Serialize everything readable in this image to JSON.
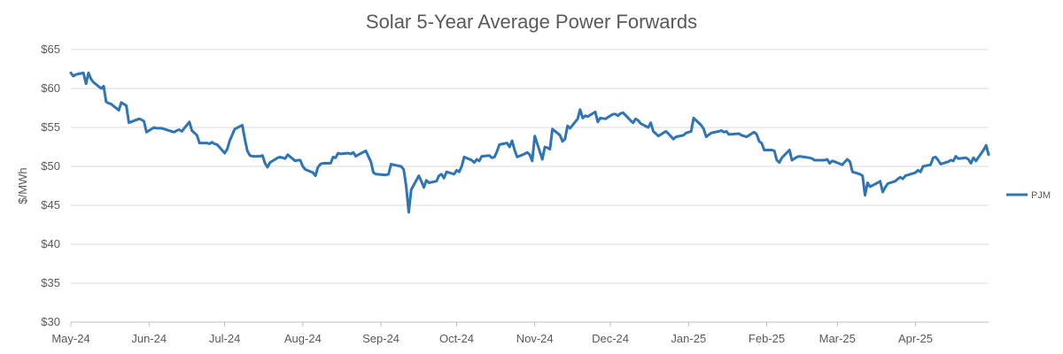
{
  "chart_data": {
    "type": "line",
    "title": "Solar 5-Year Average Power Forwards",
    "xlabel": "",
    "ylabel": "$/MWh",
    "ylim": [
      30,
      65
    ],
    "y_ticks": [
      30,
      35,
      40,
      45,
      50,
      55,
      60,
      65
    ],
    "y_tick_labels": [
      "$30",
      "$35",
      "$40",
      "$45",
      "$50",
      "$55",
      "$60",
      "$65"
    ],
    "x_range": [
      "2024-05-01",
      "2025-04-30"
    ],
    "x_ticks": [
      "2024-05-01",
      "2024-06-01",
      "2024-07-01",
      "2024-08-01",
      "2024-09-01",
      "2024-10-01",
      "2024-11-01",
      "2024-12-01",
      "2025-01-01",
      "2025-02-01",
      "2025-03-01",
      "2025-04-01"
    ],
    "x_tick_labels": [
      "May-24",
      "Jun-24",
      "Jul-24",
      "Aug-24",
      "Sep-24",
      "Oct-24",
      "Nov-24",
      "Dec-24",
      "Jan-25",
      "Feb-25",
      "Mar-25",
      "Apr-25"
    ],
    "grid": true,
    "legend_position": "right",
    "series": [
      {
        "name": "PJM",
        "color": "#2f75b5",
        "x": [
          "2024-05-01",
          "2024-05-02",
          "2024-05-03",
          "2024-05-06",
          "2024-05-07",
          "2024-05-08",
          "2024-05-09",
          "2024-05-10",
          "2024-05-13",
          "2024-05-14",
          "2024-05-15",
          "2024-05-16",
          "2024-05-17",
          "2024-05-20",
          "2024-05-21",
          "2024-05-22",
          "2024-05-23",
          "2024-05-24",
          "2024-05-28",
          "2024-05-29",
          "2024-05-30",
          "2024-05-31",
          "2024-06-03",
          "2024-06-04",
          "2024-06-05",
          "2024-06-06",
          "2024-06-07",
          "2024-06-10",
          "2024-06-11",
          "2024-06-12",
          "2024-06-13",
          "2024-06-14",
          "2024-06-17",
          "2024-06-18",
          "2024-06-20",
          "2024-06-21",
          "2024-06-24",
          "2024-06-25",
          "2024-06-26",
          "2024-06-27",
          "2024-06-28",
          "2024-07-01",
          "2024-07-02",
          "2024-07-03",
          "2024-07-05",
          "2024-07-08",
          "2024-07-09",
          "2024-07-10",
          "2024-07-11",
          "2024-07-12",
          "2024-07-15",
          "2024-07-16",
          "2024-07-17",
          "2024-07-18",
          "2024-07-19",
          "2024-07-22",
          "2024-07-23",
          "2024-07-24",
          "2024-07-25",
          "2024-07-26",
          "2024-07-29",
          "2024-07-30",
          "2024-07-31",
          "2024-08-01",
          "2024-08-02",
          "2024-08-05",
          "2024-08-06",
          "2024-08-07",
          "2024-08-08",
          "2024-08-09",
          "2024-08-12",
          "2024-08-13",
          "2024-08-14",
          "2024-08-15",
          "2024-08-16",
          "2024-08-19",
          "2024-08-20",
          "2024-08-21",
          "2024-08-22",
          "2024-08-23",
          "2024-08-26",
          "2024-08-27",
          "2024-08-28",
          "2024-08-29",
          "2024-08-30",
          "2024-09-03",
          "2024-09-04",
          "2024-09-05",
          "2024-09-06",
          "2024-09-09",
          "2024-09-10",
          "2024-09-11",
          "2024-09-12",
          "2024-09-13",
          "2024-09-16",
          "2024-09-17",
          "2024-09-18",
          "2024-09-19",
          "2024-09-20",
          "2024-09-23",
          "2024-09-24",
          "2024-09-25",
          "2024-09-26",
          "2024-09-27",
          "2024-09-30",
          "2024-10-01",
          "2024-10-02",
          "2024-10-03",
          "2024-10-04",
          "2024-10-07",
          "2024-10-08",
          "2024-10-09",
          "2024-10-10",
          "2024-10-11",
          "2024-10-14",
          "2024-10-15",
          "2024-10-16",
          "2024-10-17",
          "2024-10-18",
          "2024-10-21",
          "2024-10-22",
          "2024-10-23",
          "2024-10-24",
          "2024-10-25",
          "2024-10-28",
          "2024-10-29",
          "2024-10-30",
          "2024-10-31",
          "2024-11-01",
          "2024-11-04",
          "2024-11-05",
          "2024-11-06",
          "2024-11-07",
          "2024-11-08",
          "2024-11-11",
          "2024-11-12",
          "2024-11-13",
          "2024-11-14",
          "2024-11-15",
          "2024-11-18",
          "2024-11-19",
          "2024-11-20",
          "2024-11-21",
          "2024-11-22",
          "2024-11-25",
          "2024-11-26",
          "2024-11-27",
          "2024-11-29",
          "2024-12-02",
          "2024-12-03",
          "2024-12-04",
          "2024-12-05",
          "2024-12-06",
          "2024-12-09",
          "2024-12-10",
          "2024-12-11",
          "2024-12-12",
          "2024-12-13",
          "2024-12-16",
          "2024-12-17",
          "2024-12-18",
          "2024-12-19",
          "2024-12-20",
          "2024-12-23",
          "2024-12-24",
          "2024-12-26",
          "2024-12-27",
          "2024-12-30",
          "2024-12-31",
          "2025-01-02",
          "2025-01-03",
          "2025-01-06",
          "2025-01-07",
          "2025-01-08",
          "2025-01-10",
          "2025-01-13",
          "2025-01-14",
          "2025-01-15",
          "2025-01-16",
          "2025-01-17",
          "2025-01-21",
          "2025-01-22",
          "2025-01-23",
          "2025-01-24",
          "2025-01-27",
          "2025-01-28",
          "2025-01-29",
          "2025-01-30",
          "2025-01-31",
          "2025-02-03",
          "2025-02-04",
          "2025-02-05",
          "2025-02-06",
          "2025-02-07",
          "2025-02-10",
          "2025-02-11",
          "2025-02-12",
          "2025-02-13",
          "2025-02-14",
          "2025-02-18",
          "2025-02-19",
          "2025-02-20",
          "2025-02-21",
          "2025-02-24",
          "2025-02-25",
          "2025-02-26",
          "2025-02-27",
          "2025-02-28",
          "2025-03-03",
          "2025-03-04",
          "2025-03-05",
          "2025-03-06",
          "2025-03-07",
          "2025-03-10",
          "2025-03-11",
          "2025-03-12",
          "2025-03-13",
          "2025-03-14",
          "2025-03-17",
          "2025-03-18",
          "2025-03-19",
          "2025-03-20",
          "2025-03-21",
          "2025-03-24",
          "2025-03-25",
          "2025-03-26",
          "2025-03-27",
          "2025-03-28",
          "2025-03-31",
          "2025-04-01",
          "2025-04-02",
          "2025-04-03",
          "2025-04-04",
          "2025-04-07",
          "2025-04-08",
          "2025-04-09",
          "2025-04-10",
          "2025-04-11",
          "2025-04-14",
          "2025-04-15",
          "2025-04-16",
          "2025-04-17",
          "2025-04-18",
          "2025-04-21",
          "2025-04-22",
          "2025-04-23",
          "2025-04-24",
          "2025-04-25",
          "2025-04-28",
          "2025-04-29",
          "2025-04-30"
        ],
        "values": [
          62.0,
          61.6,
          61.8,
          62.0,
          60.6,
          62.0,
          61.2,
          60.8,
          60.0,
          60.3,
          58.3,
          58.1,
          58.0,
          57.2,
          58.2,
          58.0,
          57.8,
          55.6,
          56.1,
          56.0,
          55.8,
          54.4,
          55.0,
          54.9,
          54.9,
          54.9,
          54.8,
          54.5,
          54.4,
          54.6,
          54.7,
          54.5,
          55.7,
          54.6,
          54.0,
          53.0,
          53.0,
          52.9,
          53.1,
          52.9,
          52.8,
          51.7,
          52.2,
          53.3,
          54.8,
          55.3,
          53.5,
          52.0,
          51.4,
          51.3,
          51.3,
          51.4,
          50.4,
          49.9,
          50.5,
          51.1,
          51.2,
          51.1,
          51.0,
          51.5,
          50.7,
          50.8,
          50.8,
          50.0,
          49.6,
          49.2,
          48.8,
          49.9,
          50.3,
          50.4,
          50.4,
          51.2,
          51.1,
          51.7,
          51.6,
          51.7,
          51.6,
          51.8,
          51.3,
          51.5,
          52.0,
          51.3,
          50.6,
          49.2,
          49.0,
          48.9,
          49.0,
          50.3,
          50.2,
          50.0,
          49.6,
          47.5,
          44.1,
          47.0,
          48.8,
          48.1,
          47.3,
          48.2,
          47.9,
          48.1,
          48.8,
          49.0,
          48.5,
          49.3,
          49.0,
          49.5,
          49.3,
          50.0,
          51.2,
          50.8,
          50.5,
          50.9,
          50.7,
          51.3,
          51.4,
          51.1,
          51.2,
          51.9,
          52.8,
          53.0,
          52.5,
          53.3,
          52.1,
          51.2,
          51.6,
          51.8,
          51.5,
          50.7,
          53.9,
          50.9,
          52.5,
          52.4,
          52.2,
          54.8,
          54.0,
          53.2,
          53.5,
          55.2,
          54.9,
          56.1,
          57.3,
          56.2,
          56.5,
          56.4,
          57.0,
          55.7,
          56.2,
          56.1,
          56.7,
          56.7,
          56.5,
          56.8,
          56.9,
          55.9,
          55.6,
          56.1,
          55.9,
          55.5,
          55.0,
          55.6,
          54.5,
          54.2,
          53.9,
          54.5,
          54.2,
          53.5,
          53.8,
          54.0,
          54.3,
          54.5,
          56.2,
          55.3,
          54.8,
          53.8,
          54.3,
          54.5,
          54.6,
          54.4,
          54.5,
          54.1,
          54.2,
          54.0,
          53.9,
          53.8,
          54.4,
          54.1,
          53.2,
          53.0,
          52.1,
          52.1,
          52.0,
          50.8,
          50.5,
          51.1,
          52.1,
          50.8,
          51.0,
          51.2,
          51.3,
          51.1,
          51.0,
          50.8,
          50.8,
          50.8,
          50.9,
          50.4,
          50.7,
          50.6,
          50.2,
          50.6,
          50.9,
          50.6,
          49.3,
          49.0,
          48.8,
          46.3,
          47.9,
          47.4,
          47.9,
          48.1,
          46.7,
          47.3,
          47.8,
          48.1,
          48.4,
          48.6,
          48.4,
          48.8,
          49.1,
          49.2,
          49.5,
          49.3,
          50.0,
          50.2,
          51.1,
          51.2,
          50.8,
          50.3,
          50.6,
          50.8,
          50.7,
          51.3,
          51.0,
          51.1,
          50.9,
          50.4,
          51.1,
          50.7,
          52.1,
          52.7,
          51.5
        ]
      }
    ]
  }
}
